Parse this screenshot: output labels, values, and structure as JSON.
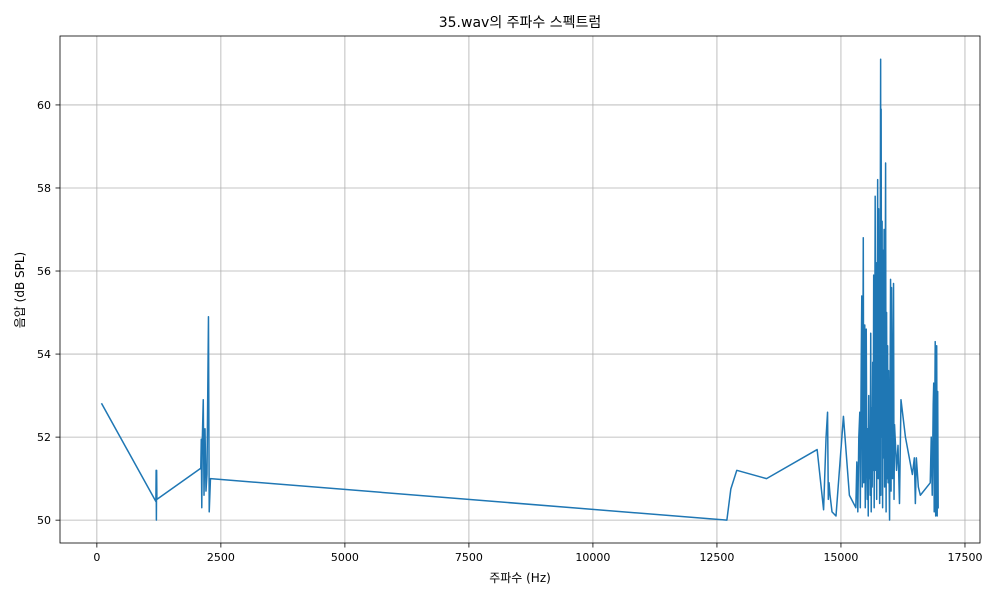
{
  "chart_data": {
    "type": "line",
    "title": "35.wav의 주파수 스펙트럼",
    "xlabel": "주파수 (Hz)",
    "ylabel": "음압 (dB SPL)",
    "xlim": [
      -743,
      17803
    ],
    "ylim": [
      49.45,
      61.66
    ],
    "xticks": [
      0,
      2500,
      5000,
      7500,
      10000,
      12500,
      15000,
      17500
    ],
    "xtick_labels": [
      "0",
      "2500",
      "5000",
      "7500",
      "10000",
      "12500",
      "15000",
      "17500"
    ],
    "yticks": [
      50,
      52,
      54,
      56,
      58,
      60
    ],
    "ytick_labels": [
      "50",
      "52",
      "54",
      "56",
      "58",
      "60"
    ],
    "grid": true,
    "line_color": "#1f77b4",
    "grid_color": "#b0b0b0",
    "x": [
      100,
      1190,
      1195,
      1200,
      1205,
      1210,
      2095,
      2105,
      2115,
      2125,
      2145,
      2160,
      2180,
      2200,
      2220,
      2250,
      2265,
      2290,
      12700,
      12780,
      12900,
      13500,
      14520,
      14650,
      14700,
      14730,
      14745,
      14760,
      14780,
      14820,
      14900,
      15050,
      15170,
      15300,
      15320,
      15340,
      15360,
      15380,
      15390,
      15410,
      15420,
      15430,
      15440,
      15450,
      15460,
      15470,
      15480,
      15490,
      15500,
      15510,
      15520,
      15530,
      15540,
      15550,
      15560,
      15570,
      15580,
      15590,
      15600,
      15610,
      15620,
      15630,
      15640,
      15650,
      15660,
      15670,
      15680,
      15690,
      15700,
      15710,
      15720,
      15730,
      15740,
      15750,
      15760,
      15770,
      15780,
      15790,
      15800,
      15805,
      15810,
      15820,
      15830,
      15840,
      15850,
      15860,
      15870,
      15880,
      15890,
      15900,
      15910,
      15920,
      15930,
      15940,
      15950,
      15960,
      15970,
      15980,
      15990,
      16000,
      16010,
      16020,
      16030,
      16040,
      16050,
      16060,
      16070,
      16080,
      16100,
      16120,
      16150,
      16180,
      16210,
      16300,
      16440,
      16480,
      16500,
      16520,
      16560,
      16600,
      16800,
      16820,
      16840,
      16860,
      16870,
      16880,
      16900,
      16910,
      16930,
      16940,
      16950,
      16960
    ],
    "y": [
      52.8,
      50.45,
      51.2,
      50.0,
      51.2,
      50.5,
      51.25,
      51.95,
      50.3,
      51.9,
      52.9,
      50.6,
      52.2,
      50.7,
      51.1,
      54.9,
      50.2,
      51.0,
      50.0,
      50.75,
      51.2,
      51.0,
      51.7,
      50.25,
      52.0,
      52.6,
      50.5,
      50.9,
      50.6,
      50.2,
      50.1,
      52.5,
      50.6,
      50.3,
      51.4,
      50.2,
      52.0,
      52.6,
      50.3,
      54.0,
      55.4,
      50.8,
      53.0,
      56.8,
      50.9,
      52.5,
      54.7,
      50.3,
      52.0,
      54.6,
      51.5,
      50.5,
      52.2,
      50.1,
      53.0,
      51.0,
      51.8,
      50.6,
      54.5,
      50.2,
      52.7,
      50.8,
      53.8,
      51.2,
      55.9,
      50.3,
      53.3,
      57.8,
      51.2,
      56.2,
      50.5,
      54.0,
      58.2,
      51.0,
      57.5,
      53.0,
      50.4,
      55.6,
      61.1,
      50.6,
      59.9,
      52.0,
      57.2,
      50.3,
      56.5,
      51.5,
      57.0,
      50.8,
      54.6,
      58.6,
      50.2,
      55.0,
      51.0,
      54.2,
      50.9,
      53.6,
      51.2,
      50.0,
      53.0,
      55.8,
      50.7,
      55.6,
      51.4,
      51.0,
      54.0,
      55.7,
      50.5,
      52.3,
      51.8,
      51.2,
      51.8,
      50.4,
      52.9,
      52.0,
      51.1,
      51.5,
      50.4,
      51.5,
      50.8,
      50.6,
      50.9,
      52.0,
      50.6,
      52.8,
      53.3,
      50.2,
      54.3,
      50.1,
      54.2,
      50.1,
      53.1,
      50.3
    ]
  }
}
